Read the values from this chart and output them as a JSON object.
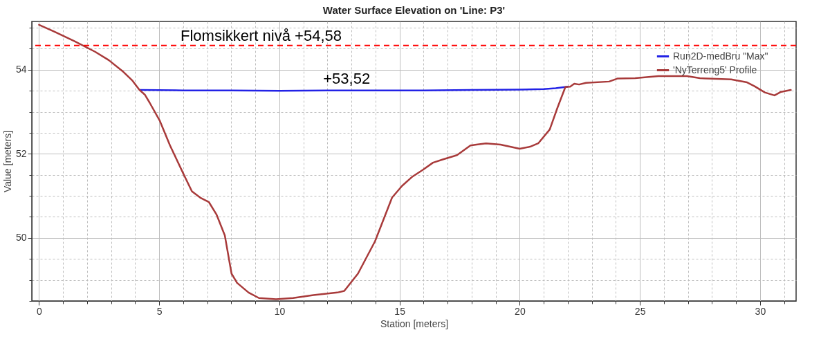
{
  "chart_data": {
    "type": "line",
    "title": "Water Surface Elevation on 'Line: P3'",
    "xlabel": "Station [meters]",
    "ylabel": "Value [meters]",
    "xlim": [
      -0.3,
      31.5
    ],
    "ylim": [
      48.5,
      55.15
    ],
    "xticks": [
      0,
      {
        "value": 1,
        "label": null
      },
      {
        "value": 2,
        "label": null
      },
      {
        "value": 3,
        "label": null
      },
      {
        "value": 4,
        "label": null
      },
      5,
      {
        "value": 6,
        "label": null
      },
      {
        "value": 7,
        "label": null
      },
      {
        "value": 8,
        "label": null
      },
      {
        "value": 9,
        "label": null
      },
      10,
      {
        "value": 11,
        "label": null
      },
      {
        "value": 12,
        "label": null
      },
      {
        "value": 13,
        "label": null
      },
      {
        "value": 14,
        "label": null
      },
      15,
      {
        "value": 16,
        "label": null
      },
      {
        "value": 17,
        "label": null
      },
      {
        "value": 18,
        "label": null
      },
      {
        "value": 19,
        "label": null
      },
      20,
      {
        "value": 21,
        "label": null
      },
      {
        "value": 22,
        "label": null
      },
      {
        "value": 23,
        "label": null
      },
      {
        "value": 24,
        "label": null
      },
      25,
      {
        "value": 26,
        "label": null
      },
      {
        "value": 27,
        "label": null
      },
      {
        "value": 28,
        "label": null
      },
      {
        "value": 29,
        "label": null
      },
      30,
      {
        "value": 31,
        "label": null
      }
    ],
    "yticks": [
      {
        "value": 48.5,
        "label": null
      },
      {
        "value": 49,
        "label": null
      },
      {
        "value": 49.5,
        "label": null
      },
      50,
      {
        "value": 50.5,
        "label": null
      },
      {
        "value": 51,
        "label": null
      },
      {
        "value": 51.5,
        "label": null
      },
      52,
      {
        "value": 52.5,
        "label": null
      },
      {
        "value": 53,
        "label": null
      },
      {
        "value": 53.5,
        "label": null
      },
      54,
      {
        "value": 54.5,
        "label": null
      },
      {
        "value": 55,
        "label": null
      }
    ],
    "grid": true,
    "legend": "top right",
    "line_style": "solid",
    "series": [
      {
        "name": "Run2D-medBru \"Max\"",
        "color": "#2222e6",
        "x": [
          4.2,
          6,
          8,
          10,
          12,
          14,
          16,
          18,
          20,
          21,
          21.5,
          22
        ],
        "values": [
          53.52,
          53.51,
          53.51,
          53.5,
          53.51,
          53.51,
          53.51,
          53.52,
          53.53,
          53.54,
          53.56,
          53.6
        ]
      },
      {
        "name": "'NyTerreng5' Profile",
        "color": "#a83a3a",
        "x": [
          0,
          0.63,
          1.48,
          2.33,
          2.9,
          3.47,
          3.89,
          4.18,
          4.4,
          4.6,
          5.03,
          5.45,
          6.02,
          6.36,
          6.73,
          7.07,
          7.39,
          7.73,
          8.01,
          8.24,
          8.72,
          9.15,
          9.86,
          10.57,
          11.42,
          12.41,
          12.7,
          13.27,
          13.98,
          14.69,
          15.11,
          15.54,
          15.97,
          16.39,
          16.82,
          17.39,
          17.95,
          18.2,
          18.6,
          19.2,
          20.0,
          20.43,
          20.77,
          21.25,
          21.56,
          21.9,
          22.1,
          22.27,
          22.47,
          22.76,
          23.72,
          24.06,
          24.8,
          25.77,
          26.96,
          27.5,
          28.8,
          29.46,
          29.77,
          30.2,
          30.6,
          30.85,
          31.28
        ],
        "values": [
          55.07,
          54.91,
          54.68,
          54.43,
          54.23,
          53.97,
          53.74,
          53.52,
          53.41,
          53.22,
          52.78,
          52.2,
          51.51,
          51.11,
          50.95,
          50.85,
          50.55,
          50.06,
          49.15,
          48.93,
          48.7,
          48.57,
          48.54,
          48.57,
          48.64,
          48.7,
          48.74,
          49.15,
          49.92,
          50.96,
          51.24,
          51.46,
          51.62,
          51.79,
          51.87,
          51.97,
          52.2,
          52.22,
          52.25,
          52.22,
          52.12,
          52.17,
          52.25,
          52.58,
          53.08,
          53.59,
          53.6,
          53.67,
          53.65,
          53.69,
          53.72,
          53.79,
          53.8,
          53.85,
          53.85,
          53.8,
          53.77,
          53.7,
          53.61,
          53.46,
          53.39,
          53.47,
          53.52
        ]
      }
    ],
    "ref_lines": [
      {
        "axis": "y",
        "value": 54.58,
        "label": "Flomsikkert nivå +54,58",
        "color": "#ff0000",
        "line_style": "dashed"
      }
    ],
    "annotations": [
      {
        "text": "+53,52",
        "x": 12.8,
        "y": 53.52
      }
    ]
  }
}
